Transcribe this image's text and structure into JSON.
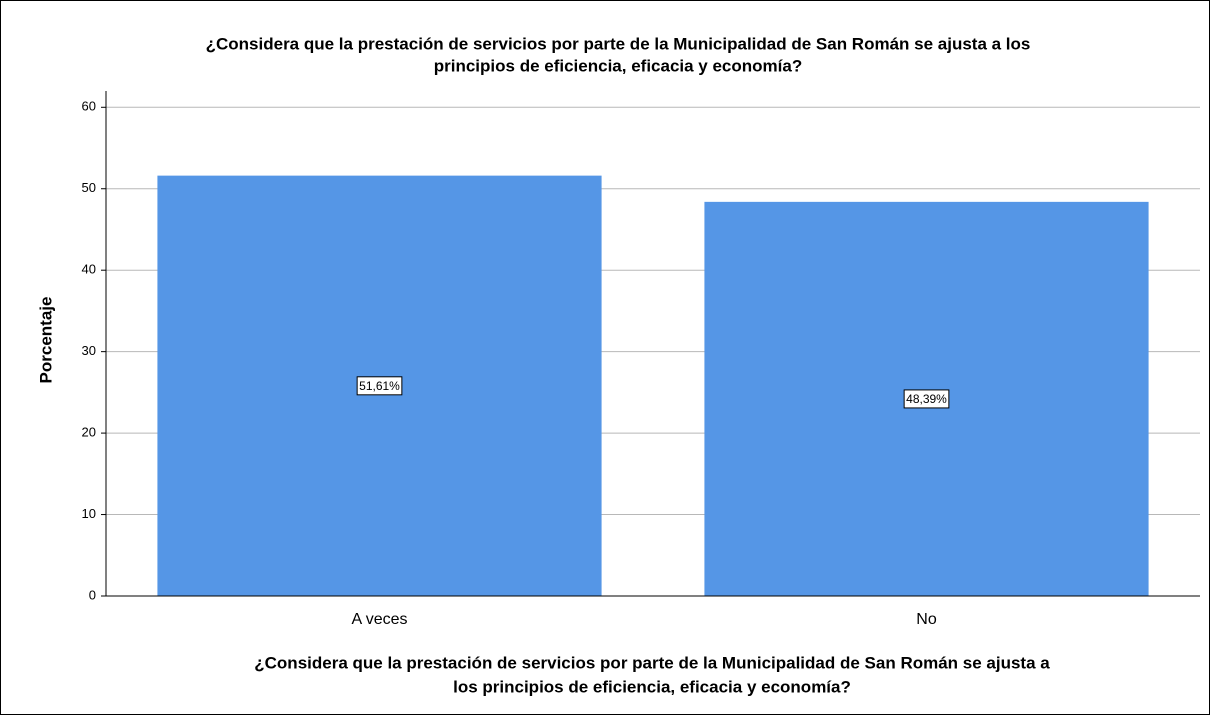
{
  "chart_data": {
    "type": "bar",
    "title": [
      "¿Considera que la prestación de servicios por parte de la Municipalidad de San Román se ajusta a los",
      "principios de eficiencia, eficacia y economía?"
    ],
    "x_label": [
      "¿Considera que la prestación de servicios por parte de la Municipalidad de San Román se ajusta a",
      "los principios de eficiencia, eficacia y economía?"
    ],
    "y_label": "Porcentaje",
    "categories": [
      "A veces",
      "No"
    ],
    "values": [
      51.61,
      48.39
    ],
    "value_labels": [
      "51,61%",
      "48,39%"
    ],
    "color": "#5596e6",
    "ylim": [
      0,
      62
    ],
    "yticks": [
      0,
      10,
      20,
      30,
      40,
      50,
      60
    ],
    "grid": true
  }
}
